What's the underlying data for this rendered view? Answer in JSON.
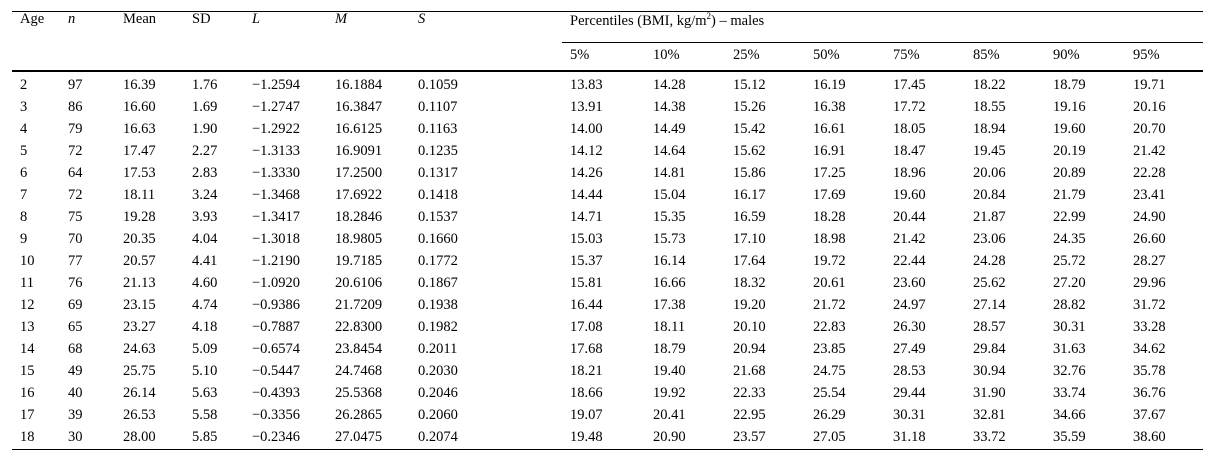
{
  "colors": {
    "background": "#ffffff",
    "text": "#000000",
    "rules": "#000000"
  },
  "table": {
    "columns": [
      "Age",
      "n",
      "Mean",
      "SD",
      "L",
      "M",
      "S"
    ],
    "group_header": {
      "prefix": "Percentiles (BMI, kg/m",
      "sup": "2",
      "suffix": ") – males"
    },
    "percentile_columns": [
      "5%",
      "10%",
      "25%",
      "50%",
      "75%",
      "85%",
      "90%",
      "95%"
    ],
    "rows": [
      [
        "2",
        "97",
        "16.39",
        "1.76",
        "−1.2594",
        "16.1884",
        "0.1059",
        "13.83",
        "14.28",
        "15.12",
        "16.19",
        "17.45",
        "18.22",
        "18.79",
        "19.71"
      ],
      [
        "3",
        "86",
        "16.60",
        "1.69",
        "−1.2747",
        "16.3847",
        "0.1107",
        "13.91",
        "14.38",
        "15.26",
        "16.38",
        "17.72",
        "18.55",
        "19.16",
        "20.16"
      ],
      [
        "4",
        "79",
        "16.63",
        "1.90",
        "−1.2922",
        "16.6125",
        "0.1163",
        "14.00",
        "14.49",
        "15.42",
        "16.61",
        "18.05",
        "18.94",
        "19.60",
        "20.70"
      ],
      [
        "5",
        "72",
        "17.47",
        "2.27",
        "−1.3133",
        "16.9091",
        "0.1235",
        "14.12",
        "14.64",
        "15.62",
        "16.91",
        "18.47",
        "19.45",
        "20.19",
        "21.42"
      ],
      [
        "6",
        "64",
        "17.53",
        "2.83",
        "−1.3330",
        "17.2500",
        "0.1317",
        "14.26",
        "14.81",
        "15.86",
        "17.25",
        "18.96",
        "20.06",
        "20.89",
        "22.28"
      ],
      [
        "7",
        "72",
        "18.11",
        "3.24",
        "−1.3468",
        "17.6922",
        "0.1418",
        "14.44",
        "15.04",
        "16.17",
        "17.69",
        "19.60",
        "20.84",
        "21.79",
        "23.41"
      ],
      [
        "8",
        "75",
        "19.28",
        "3.93",
        "−1.3417",
        "18.2846",
        "0.1537",
        "14.71",
        "15.35",
        "16.59",
        "18.28",
        "20.44",
        "21.87",
        "22.99",
        "24.90"
      ],
      [
        "9",
        "70",
        "20.35",
        "4.04",
        "−1.3018",
        "18.9805",
        "0.1660",
        "15.03",
        "15.73",
        "17.10",
        "18.98",
        "21.42",
        "23.06",
        "24.35",
        "26.60"
      ],
      [
        "10",
        "77",
        "20.57",
        "4.41",
        "−1.2190",
        "19.7185",
        "0.1772",
        "15.37",
        "16.14",
        "17.64",
        "19.72",
        "22.44",
        "24.28",
        "25.72",
        "28.27"
      ],
      [
        "11",
        "76",
        "21.13",
        "4.60",
        "−1.0920",
        "20.6106",
        "0.1867",
        "15.81",
        "16.66",
        "18.32",
        "20.61",
        "23.60",
        "25.62",
        "27.20",
        "29.96"
      ],
      [
        "12",
        "69",
        "23.15",
        "4.74",
        "−0.9386",
        "21.7209",
        "0.1938",
        "16.44",
        "17.38",
        "19.20",
        "21.72",
        "24.97",
        "27.14",
        "28.82",
        "31.72"
      ],
      [
        "13",
        "65",
        "23.27",
        "4.18",
        "−0.7887",
        "22.8300",
        "0.1982",
        "17.08",
        "18.11",
        "20.10",
        "22.83",
        "26.30",
        "28.57",
        "30.31",
        "33.28"
      ],
      [
        "14",
        "68",
        "24.63",
        "5.09",
        "−0.6574",
        "23.8454",
        "0.2011",
        "17.68",
        "18.79",
        "20.94",
        "23.85",
        "27.49",
        "29.84",
        "31.63",
        "34.62"
      ],
      [
        "15",
        "49",
        "25.75",
        "5.10",
        "−0.5447",
        "24.7468",
        "0.2030",
        "18.21",
        "19.40",
        "21.68",
        "24.75",
        "28.53",
        "30.94",
        "32.76",
        "35.78"
      ],
      [
        "16",
        "40",
        "26.14",
        "5.63",
        "−0.4393",
        "25.5368",
        "0.2046",
        "18.66",
        "19.92",
        "22.33",
        "25.54",
        "29.44",
        "31.90",
        "33.74",
        "36.76"
      ],
      [
        "17",
        "39",
        "26.53",
        "5.58",
        "−0.3356",
        "26.2865",
        "0.2060",
        "19.07",
        "20.41",
        "22.95",
        "26.29",
        "30.31",
        "32.81",
        "34.66",
        "37.67"
      ],
      [
        "18",
        "30",
        "28.00",
        "5.85",
        "−0.2346",
        "27.0475",
        "0.2074",
        "19.48",
        "20.90",
        "23.57",
        "27.05",
        "31.18",
        "33.72",
        "35.59",
        "38.60"
      ]
    ]
  }
}
